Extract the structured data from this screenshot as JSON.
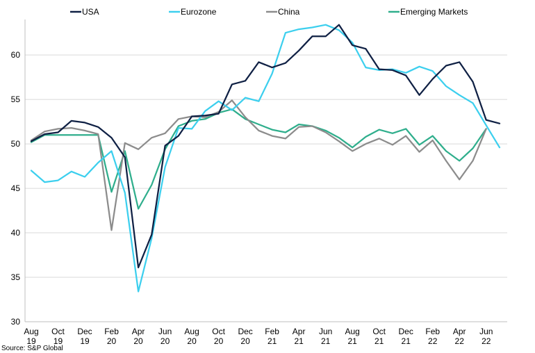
{
  "chart_data": {
    "type": "line",
    "title": "",
    "xlabel": "",
    "ylabel": "",
    "ylim": [
      30,
      64
    ],
    "yticks": [
      30,
      35,
      40,
      45,
      50,
      55,
      60
    ],
    "grid": "horizontal",
    "legend_position": "top",
    "source": "Source: S&P Global",
    "x": [
      "Aug 19",
      "Sep 19",
      "Oct 19",
      "Nov 19",
      "Dec 19",
      "Jan 20",
      "Feb 20",
      "Mar 20",
      "Apr 20",
      "May 20",
      "Jun 20",
      "Jul 20",
      "Aug 20",
      "Sep 20",
      "Oct 20",
      "Nov 20",
      "Dec 20",
      "Jan 21",
      "Feb 21",
      "Mar 21",
      "Apr 21",
      "May 21",
      "Jun 21",
      "Jul 21",
      "Aug 21",
      "Sep 21",
      "Oct 21",
      "Nov 21",
      "Dec 21",
      "Jan 22",
      "Feb 22",
      "Mar 22",
      "Apr 22",
      "May 22",
      "Jun 22",
      "Jul 22"
    ],
    "xtick_labels": [
      {
        "index": 0,
        "month": "Aug",
        "year": "19"
      },
      {
        "index": 2,
        "month": "Oct",
        "year": "19"
      },
      {
        "index": 4,
        "month": "Dec",
        "year": "19"
      },
      {
        "index": 6,
        "month": "Feb",
        "year": "20"
      },
      {
        "index": 8,
        "month": "Apr",
        "year": "20"
      },
      {
        "index": 10,
        "month": "Jun",
        "year": "20"
      },
      {
        "index": 12,
        "month": "Aug",
        "year": "20"
      },
      {
        "index": 14,
        "month": "Oct",
        "year": "20"
      },
      {
        "index": 16,
        "month": "Dec",
        "year": "20"
      },
      {
        "index": 18,
        "month": "Feb",
        "year": "21"
      },
      {
        "index": 20,
        "month": "Apr",
        "year": "21"
      },
      {
        "index": 22,
        "month": "Jun",
        "year": "21"
      },
      {
        "index": 24,
        "month": "Aug",
        "year": "21"
      },
      {
        "index": 26,
        "month": "Oct",
        "year": "21"
      },
      {
        "index": 28,
        "month": "Dec",
        "year": "21"
      },
      {
        "index": 30,
        "month": "Feb",
        "year": "22"
      },
      {
        "index": 32,
        "month": "Apr",
        "year": "22"
      },
      {
        "index": 34,
        "month": "Jun",
        "year": "22"
      }
    ],
    "series": [
      {
        "name": "USA",
        "color": "#0f2044",
        "values": [
          50.3,
          51.1,
          51.3,
          52.6,
          52.4,
          51.9,
          50.7,
          48.5,
          36.1,
          39.8,
          49.8,
          50.9,
          53.1,
          53.2,
          53.4,
          56.7,
          57.1,
          59.2,
          58.6,
          59.1,
          60.5,
          62.1,
          62.1,
          63.4,
          61.1,
          60.7,
          58.4,
          58.3,
          57.7,
          55.5,
          57.3,
          58.8,
          59.2,
          57.0,
          52.7,
          52.3
        ]
      },
      {
        "name": "Eurozone",
        "color": "#3ccfee",
        "values": [
          47.0,
          45.7,
          45.9,
          46.9,
          46.3,
          47.9,
          49.2,
          44.5,
          33.4,
          39.4,
          47.4,
          51.8,
          51.7,
          53.7,
          54.8,
          53.8,
          55.2,
          54.8,
          57.9,
          62.5,
          62.9,
          63.1,
          63.4,
          62.8,
          61.4,
          58.6,
          58.3,
          58.4,
          58.0,
          58.7,
          58.2,
          56.5,
          55.5,
          54.6,
          52.1,
          49.6
        ]
      },
      {
        "name": "China",
        "color": "#8c8c8c",
        "values": [
          50.4,
          51.4,
          51.7,
          51.8,
          51.5,
          51.1,
          40.3,
          50.1,
          49.4,
          50.7,
          51.2,
          52.8,
          53.1,
          53.0,
          53.6,
          54.9,
          53.0,
          51.5,
          50.9,
          50.6,
          51.9,
          52.0,
          51.3,
          50.3,
          49.2,
          50.0,
          50.6,
          49.9,
          50.9,
          49.1,
          50.4,
          48.1,
          46.0,
          48.1,
          51.7,
          null
        ]
      },
      {
        "name": "Emerging Markets",
        "color": "#2fae8c",
        "values": [
          50.2,
          51.0,
          51.0,
          51.0,
          51.0,
          51.0,
          44.6,
          49.2,
          42.7,
          45.4,
          49.4,
          52.0,
          52.6,
          52.8,
          53.5,
          53.9,
          52.8,
          52.2,
          51.6,
          51.3,
          52.2,
          52.0,
          51.5,
          50.7,
          49.6,
          50.8,
          51.6,
          51.2,
          51.7,
          49.9,
          50.9,
          49.2,
          48.1,
          49.5,
          51.7,
          null
        ]
      }
    ]
  }
}
